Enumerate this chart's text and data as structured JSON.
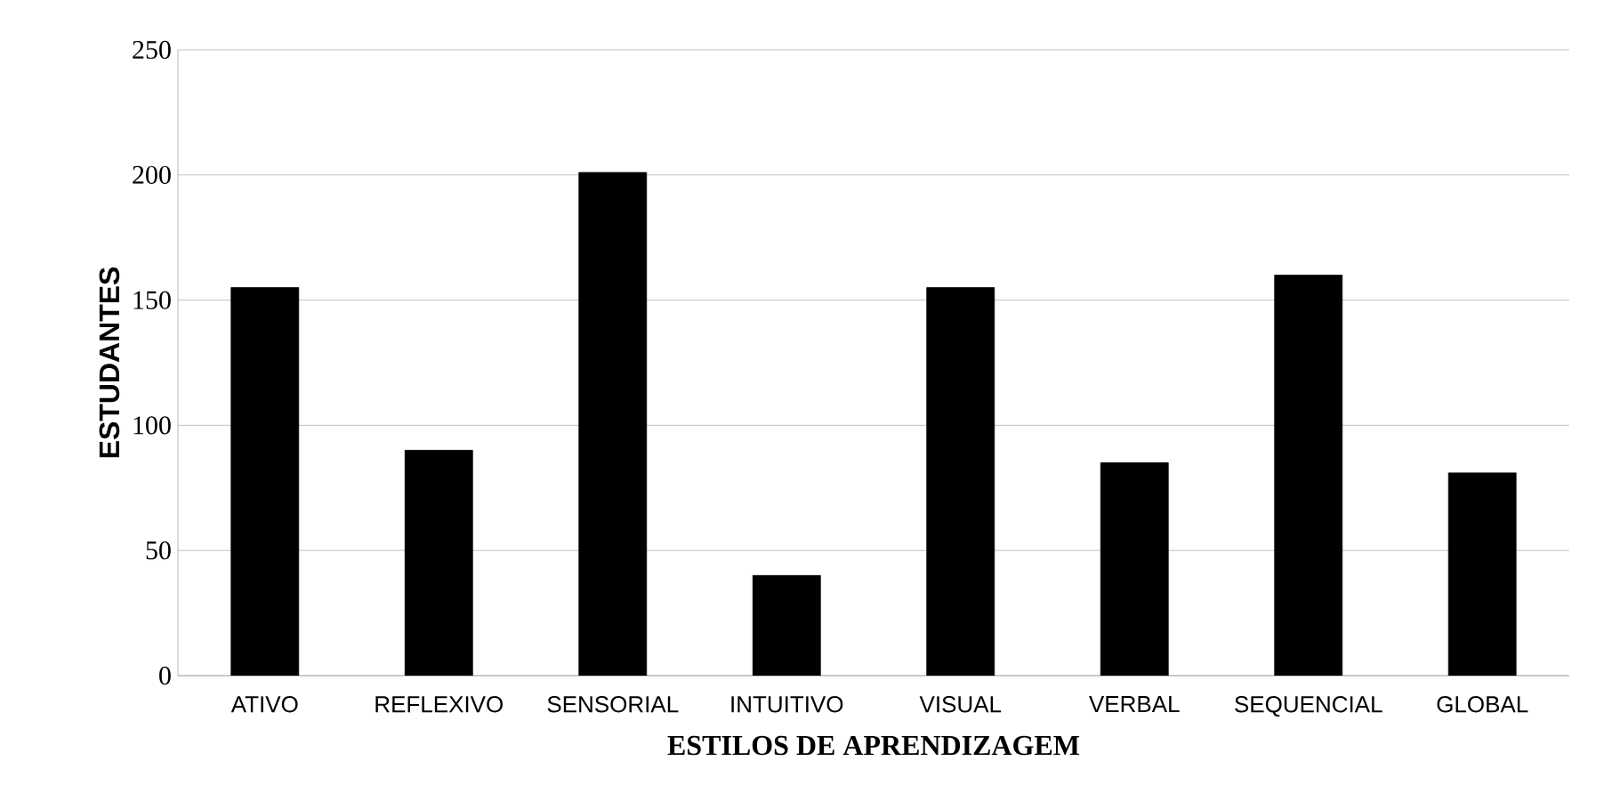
{
  "chart_data": {
    "type": "bar",
    "xlabel": "ESTILOS DE APRENDIZAGEM",
    "ylabel": "ESTUDANTES",
    "categories": [
      "ATIVO",
      "REFLEXIVO",
      "SENSORIAL",
      "INTUITIVO",
      "VISUAL",
      "VERBAL",
      "SEQUENCIAL",
      "GLOBAL"
    ],
    "values": [
      155,
      90,
      201,
      40,
      155,
      85,
      160,
      81
    ],
    "color": "#000000",
    "ylim": [
      0,
      250
    ],
    "yticks": [
      0,
      50,
      100,
      150,
      200,
      250
    ],
    "grid": "y"
  }
}
